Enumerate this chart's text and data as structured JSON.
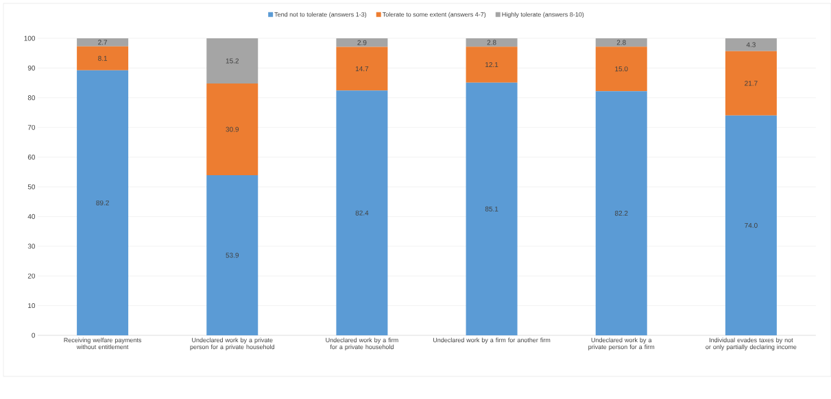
{
  "chart_data": {
    "type": "bar",
    "stacked": true,
    "categories": [
      "Receiving welfare payments without entitlement",
      "Undeclared work by a private person for a private household",
      "Undeclared work by a firm for a private household",
      "Undeclared work by a firm for another firm",
      "Undeclared work by a private person for a firm",
      "Individual evades taxes by not or only partially declaring income"
    ],
    "series": [
      {
        "name": "Tend not to tolerate (answers 1-3)",
        "color": "#5b9bd5",
        "values": [
          89.2,
          53.9,
          82.4,
          85.1,
          82.2,
          74.0
        ],
        "value_labels": [
          "89.2",
          "53.9",
          "82.4",
          "85.1",
          "82.2",
          "74.0"
        ]
      },
      {
        "name": "Tolerate to some extent (answers 4-7)",
        "color": "#ed7d31",
        "values": [
          8.1,
          30.9,
          14.7,
          12.1,
          15.0,
          21.7
        ],
        "value_labels": [
          "8.1",
          "30.9",
          "14.7",
          "12.1",
          "15.0",
          "21.7"
        ]
      },
      {
        "name": "Highly tolerate (answers 8-10)",
        "color": "#a5a5a5",
        "values": [
          2.7,
          15.2,
          2.9,
          2.8,
          2.8,
          4.3
        ],
        "value_labels": [
          "2.7",
          "15.2",
          "2.9",
          "2.8",
          "2.8",
          "4.3"
        ]
      }
    ],
    "ylim": [
      0,
      100
    ],
    "yticks": [
      0,
      10,
      20,
      30,
      40,
      50,
      60,
      70,
      80,
      90,
      100
    ],
    "grid": "y",
    "legend": "top"
  }
}
